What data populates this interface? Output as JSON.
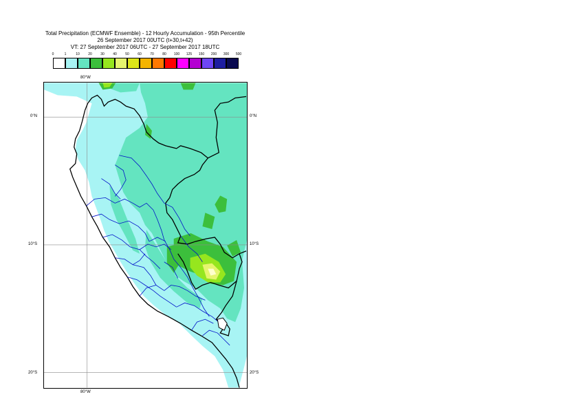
{
  "title": {
    "line1": "Total Precipitation (ECMWF Ensemble) - 12 Hourly Accumulation - 95th Percentile",
    "line2": "26 September 2017 00UTC (t+30,t+42)",
    "line3": "VT: 27 September 2017 06UTC - 27 September 2017 18UTC"
  },
  "legend": {
    "ticks": [
      "0",
      "1",
      "10",
      "20",
      "30",
      "40",
      "50",
      "60",
      "70",
      "80",
      "100",
      "125",
      "150",
      "200",
      "300",
      "500"
    ],
    "colors": [
      "#ffffff",
      "#a8f4f4",
      "#64e4c0",
      "#3cbf3c",
      "#96e61e",
      "#e6f56e",
      "#dde619",
      "#f5b400",
      "#ff7800",
      "#ff0000",
      "#ff00ff",
      "#b400d2",
      "#6e46f5",
      "#1e1ea0",
      "#0a0a50"
    ]
  },
  "axes": {
    "lon_top": "80°W",
    "lon_bottom": "80°W",
    "lat_0_left": "0°N",
    "lat_0_right": "0°N",
    "lat_10_left": "10°S",
    "lat_10_right": "10°S",
    "lat_20_left": "20°S",
    "lat_20_right": "20°S"
  }
}
